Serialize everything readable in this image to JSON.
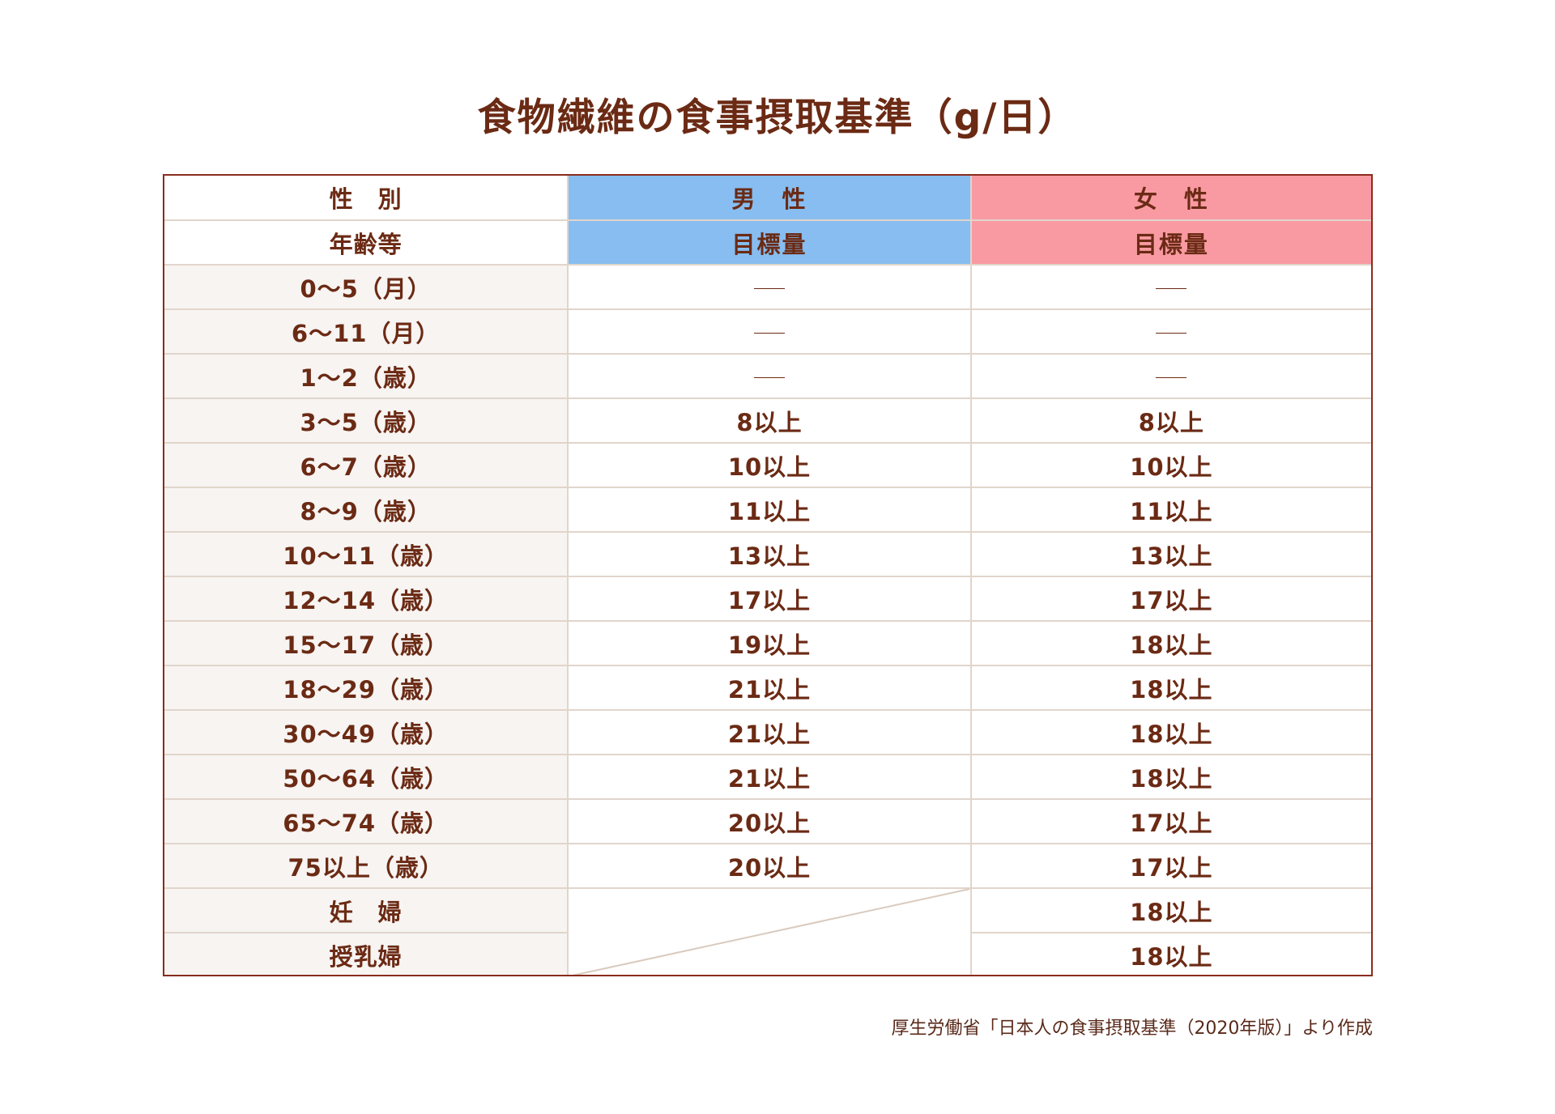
{
  "title": "食物繊維の食事摂取基準（g/日）",
  "table": {
    "header": {
      "sex_label": "性　別",
      "age_label": "年齢等",
      "male": "男　性",
      "female": "女　性",
      "male_sub": "目標量",
      "female_sub": "目標量"
    },
    "rows": [
      {
        "age": "0～5（月）",
        "male": "—",
        "female": "—"
      },
      {
        "age": "6～11（月）",
        "male": "—",
        "female": "—"
      },
      {
        "age": "1～2（歳）",
        "male": "—",
        "female": "—"
      },
      {
        "age": "3～5（歳）",
        "male": "8以上",
        "female": "8以上"
      },
      {
        "age": "6～7（歳）",
        "male": "10以上",
        "female": "10以上"
      },
      {
        "age": "8～9（歳）",
        "male": "11以上",
        "female": "11以上"
      },
      {
        "age": "10～11（歳）",
        "male": "13以上",
        "female": "13以上"
      },
      {
        "age": "12～14（歳）",
        "male": "17以上",
        "female": "17以上"
      },
      {
        "age": "15～17（歳）",
        "male": "19以上",
        "female": "18以上"
      },
      {
        "age": "18～29（歳）",
        "male": "21以上",
        "female": "18以上"
      },
      {
        "age": "30～49（歳）",
        "male": "21以上",
        "female": "18以上"
      },
      {
        "age": "50～64（歳）",
        "male": "21以上",
        "female": "18以上"
      },
      {
        "age": "65～74（歳）",
        "male": "20以上",
        "female": "17以上"
      },
      {
        "age": "75以上（歳）",
        "male": "20以上",
        "female": "17以上"
      },
      {
        "age": "妊　婦",
        "female": "18以上"
      },
      {
        "age": "授乳婦",
        "female": "18以上"
      }
    ]
  },
  "source": "厚生労働省「日本人の食事摂取基準（2020年版）」より作成",
  "colors": {
    "text": "#6b2a14",
    "border": "#8a2b1c",
    "grid": "#e1d5cb",
    "male_header": "#87bdf0",
    "female_header": "#f99aa3",
    "age_column_bg": "#f7f4f2"
  }
}
